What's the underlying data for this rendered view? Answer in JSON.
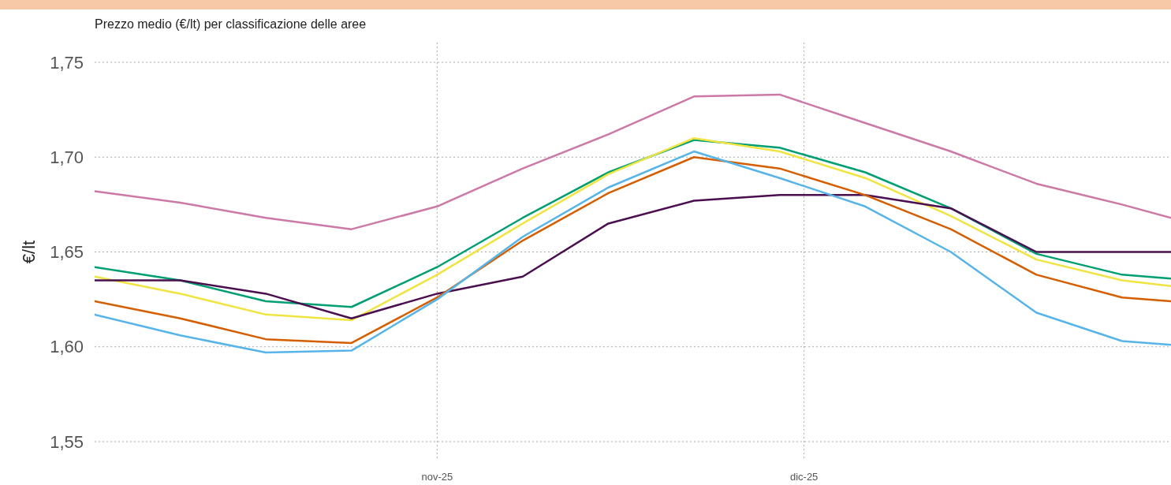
{
  "chart_data": {
    "type": "line",
    "title": "Prezzo medio (€/lt) per classificazione delle aree",
    "ylabel": "€/lt",
    "x": [
      "2025-10-04",
      "2025-10-11",
      "2025-10-18",
      "2025-10-25",
      "2025-11-01",
      "2025-11-08",
      "2025-11-15",
      "2025-11-22",
      "2025-11-29",
      "2025-12-06",
      "2025-12-13",
      "2025-12-20",
      "2025-12-27",
      "2025-12-31"
    ],
    "series": [
      {
        "color": "#cc79a7",
        "values": [
          1.682,
          1.676,
          1.668,
          1.662,
          1.674,
          1.694,
          1.712,
          1.732,
          1.733,
          1.718,
          1.703,
          1.686,
          1.675,
          1.668
        ]
      },
      {
        "color": "#009e73",
        "values": [
          1.642,
          1.635,
          1.624,
          1.621,
          1.642,
          1.668,
          1.692,
          1.709,
          1.705,
          1.692,
          1.673,
          1.649,
          1.638,
          1.636
        ]
      },
      {
        "color": "#f0e442",
        "values": [
          1.637,
          1.628,
          1.617,
          1.614,
          1.638,
          1.665,
          1.691,
          1.71,
          1.703,
          1.689,
          1.669,
          1.646,
          1.635,
          1.632
        ]
      },
      {
        "color": "#4b0f4f",
        "values": [
          1.635,
          1.635,
          1.628,
          1.615,
          1.628,
          1.637,
          1.665,
          1.677,
          1.68,
          1.68,
          1.673,
          1.65,
          1.65,
          1.65
        ]
      },
      {
        "color": "#d55e00",
        "values": [
          1.624,
          1.615,
          1.604,
          1.602,
          1.626,
          1.656,
          1.681,
          1.7,
          1.694,
          1.68,
          1.662,
          1.638,
          1.626,
          1.624
        ]
      },
      {
        "color": "#56b4e9",
        "values": [
          1.617,
          1.606,
          1.597,
          1.598,
          1.625,
          1.658,
          1.684,
          1.703,
          1.689,
          1.674,
          1.65,
          1.618,
          1.603,
          1.601
        ]
      }
    ],
    "xlim": [
      "2025-10-04",
      "2025-12-31"
    ],
    "xticks": [
      {
        "value": "2025-11-01",
        "label": "nov-25"
      },
      {
        "value": "2025-12-01",
        "label": "dic-25"
      }
    ],
    "ylim": [
      1.55,
      1.75
    ],
    "yticks": [
      {
        "value": 1.55,
        "label": "1,55"
      },
      {
        "value": 1.6,
        "label": "1,60"
      },
      {
        "value": 1.65,
        "label": "1,65"
      },
      {
        "value": 1.7,
        "label": "1,70"
      },
      {
        "value": 1.75,
        "label": "1,75"
      }
    ],
    "grid": true,
    "line_style": "solid",
    "marker": "none"
  }
}
